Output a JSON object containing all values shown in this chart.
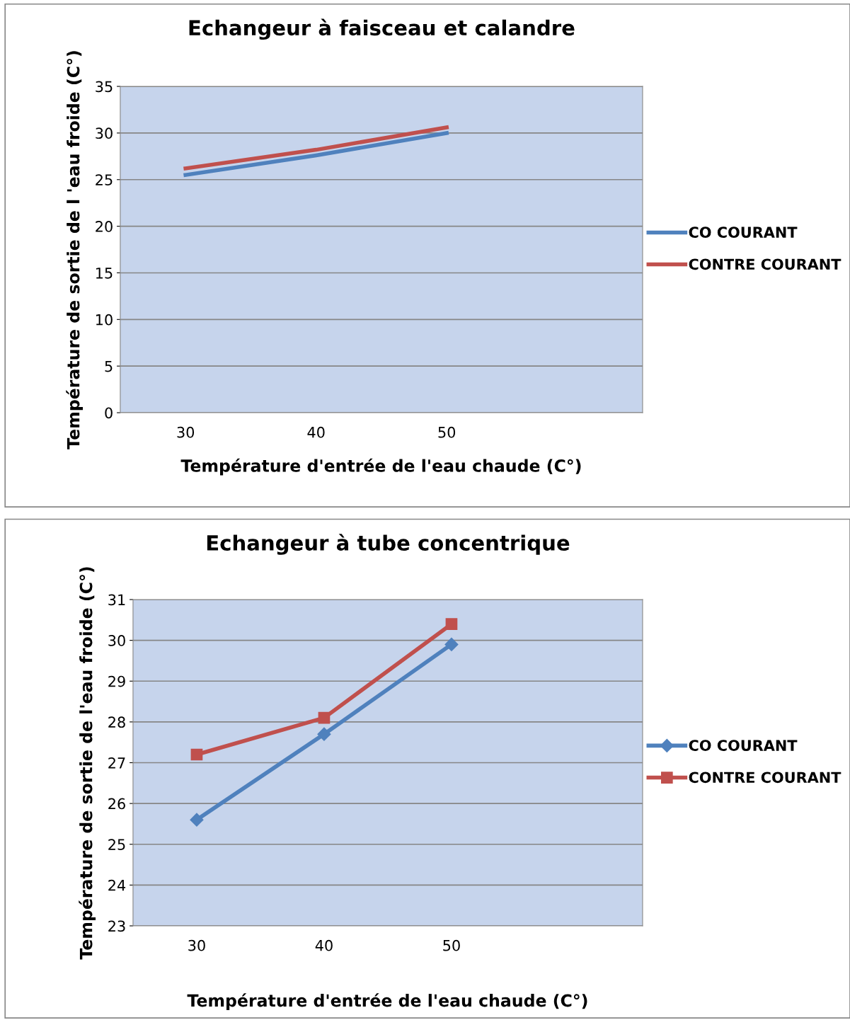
{
  "chart_data": [
    {
      "type": "line",
      "title": "Echangeur à faisceau et calandre",
      "xlabel": "Température d'entrée de l'eau chaude (C°)",
      "ylabel": "Température de sortie de l 'eau froide (C°)",
      "categories": [
        "30",
        "40",
        "50",
        null
      ],
      "series": [
        {
          "name": "CO COURANT",
          "color": "#4f81bd",
          "values": [
            25.5,
            27.6,
            30.0,
            null
          ]
        },
        {
          "name": "CONTRE COURANT",
          "color": "#c0504d",
          "values": [
            26.2,
            28.2,
            30.6,
            null
          ]
        }
      ],
      "ylim": [
        0,
        35
      ],
      "yticks": [
        0,
        5,
        10,
        15,
        20,
        25,
        30,
        35
      ],
      "grid": "y",
      "legend": "right",
      "marker": "none"
    },
    {
      "type": "line",
      "title": "Echangeur à tube concentrique",
      "xlabel": "Température d'entrée de l'eau chaude (C°)",
      "ylabel": "Température de sortie de l'eau froide (C°)",
      "categories": [
        "30",
        "40",
        "50",
        null
      ],
      "series": [
        {
          "name": "CO COURANT",
          "color": "#4f81bd",
          "values": [
            25.6,
            27.7,
            29.9,
            null
          ],
          "marker": "diamond"
        },
        {
          "name": "CONTRE COURANT",
          "color": "#c0504d",
          "values": [
            27.2,
            28.1,
            30.4,
            null
          ],
          "marker": "square"
        }
      ],
      "ylim": [
        23,
        31
      ],
      "yticks": [
        23,
        24,
        25,
        26,
        27,
        28,
        29,
        30,
        31
      ],
      "grid": "y",
      "legend": "right"
    }
  ]
}
